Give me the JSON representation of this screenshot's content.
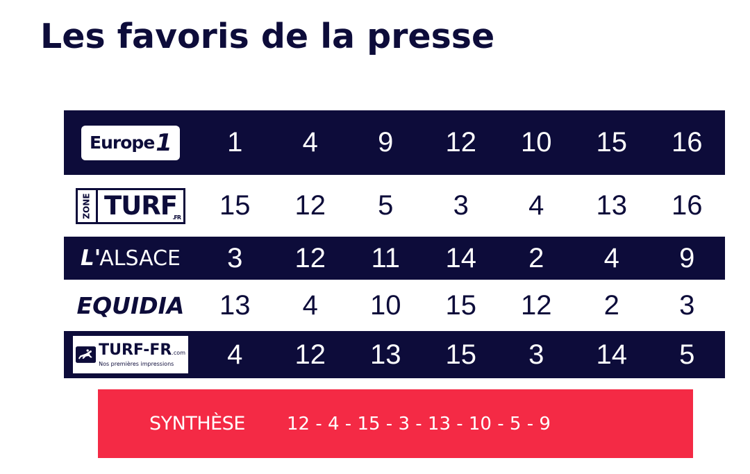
{
  "title": "Les favoris de la presse",
  "colors": {
    "navy": "#0d0c3a",
    "red": "#f42a45",
    "white": "#ffffff"
  },
  "rows": [
    {
      "source": "Europe 1",
      "logo_text": "Europe",
      "logo_text2": "1",
      "numbers": [
        "1",
        "4",
        "9",
        "12",
        "10",
        "15",
        "16"
      ]
    },
    {
      "source": "Zone Turf",
      "logo_text": "ZONE",
      "logo_text2": "TURF",
      "logo_text3": ".FR",
      "numbers": [
        "15",
        "12",
        "5",
        "3",
        "4",
        "13",
        "16"
      ]
    },
    {
      "source": "L'Alsace",
      "logo_text": "L'",
      "logo_text2": "ALSACE",
      "numbers": [
        "3",
        "12",
        "11",
        "14",
        "2",
        "4",
        "9"
      ]
    },
    {
      "source": "Equidia",
      "logo_text": "EQUIDIA",
      "numbers": [
        "13",
        "4",
        "10",
        "15",
        "12",
        "2",
        "3"
      ]
    },
    {
      "source": "Turf-FR",
      "logo_text": "TURF-FR",
      "logo_text2": ".com",
      "logo_text3": "Nos premières impressions",
      "numbers": [
        "4",
        "12",
        "13",
        "15",
        "3",
        "14",
        "5"
      ]
    }
  ],
  "synthese": {
    "label": "SYNTHÈSE",
    "values": "12  -  4  -  15  -  3  -  13  -  10  -  5  -  9"
  }
}
